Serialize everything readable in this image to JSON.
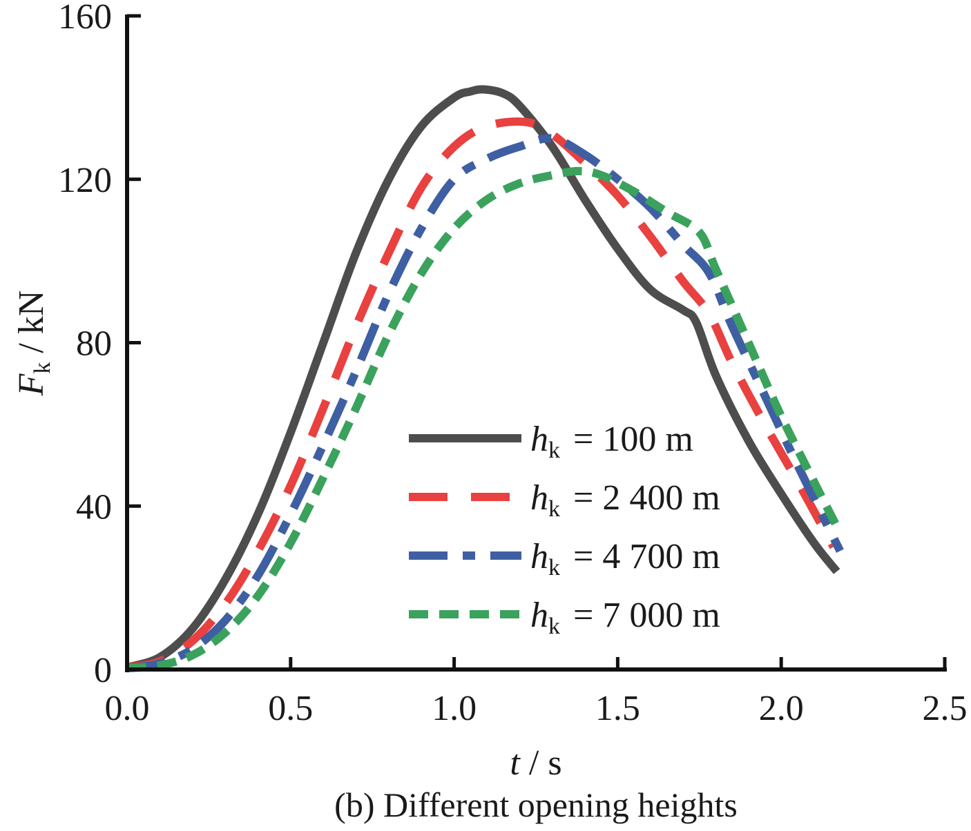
{
  "chart_data": {
    "type": "line",
    "title": "",
    "caption": "(b) Different opening heights",
    "xlabel": {
      "var": "t",
      "unit": " / s"
    },
    "ylabel": {
      "var": "F",
      "sub": "k",
      "unit": " / kN"
    },
    "xlim": [
      0,
      2.5
    ],
    "ylim": [
      0,
      160
    ],
    "xticks": [
      0.0,
      0.5,
      1.0,
      1.5,
      2.0,
      2.5
    ],
    "xtick_labels": [
      "0.0",
      "0.5",
      "1.0",
      "1.5",
      "2.0",
      "2.5"
    ],
    "yticks": [
      0,
      40,
      80,
      120,
      160
    ],
    "ytick_labels": [
      "0",
      "40",
      "80",
      "120",
      "160"
    ],
    "grid": false,
    "legend_position": "center-right",
    "series": [
      {
        "name": "h_k = 100 m",
        "label_var": "h",
        "label_sub": "k",
        "label_value": "= 100  m",
        "color": "#4d4d4d",
        "style": "solid",
        "x": [
          0.0,
          0.1,
          0.2,
          0.3,
          0.4,
          0.5,
          0.6,
          0.7,
          0.8,
          0.9,
          1.0,
          1.05,
          1.09,
          1.15,
          1.2,
          1.3,
          1.4,
          1.5,
          1.6,
          1.7,
          1.74,
          1.8,
          1.9,
          2.0,
          2.1,
          2.17
        ],
        "y": [
          0.5,
          3,
          10,
          22,
          38,
          58,
          80,
          102,
          120,
          133,
          140,
          141.5,
          142,
          141,
          138,
          128,
          115,
          103,
          93,
          88,
          85,
          72,
          56,
          43,
          31,
          24
        ]
      },
      {
        "name": "h_k = 2 400 m",
        "label_var": "h",
        "label_sub": "k",
        "label_value": "= 2 400  m",
        "color": "#e8413f",
        "style": "dash",
        "x": [
          0.0,
          0.1,
          0.2,
          0.3,
          0.4,
          0.5,
          0.6,
          0.7,
          0.8,
          0.9,
          1.0,
          1.1,
          1.22,
          1.3,
          1.4,
          1.5,
          1.6,
          1.7,
          1.78,
          1.85,
          1.95,
          2.05,
          2.16
        ],
        "y": [
          0.5,
          2,
          7,
          16,
          29,
          45,
          64,
          84,
          102,
          118,
          128,
          133,
          134,
          131,
          124,
          116,
          106,
          95,
          87,
          75,
          60,
          46,
          30
        ]
      },
      {
        "name": "h_k = 4 700 m",
        "label_var": "h",
        "label_sub": "k",
        "label_value": "= 4 700  m",
        "color": "#3f5fa3",
        "style": "dashdot",
        "x": [
          0.0,
          0.1,
          0.2,
          0.3,
          0.4,
          0.5,
          0.6,
          0.7,
          0.8,
          0.9,
          1.0,
          1.1,
          1.2,
          1.3,
          1.4,
          1.5,
          1.6,
          1.7,
          1.78,
          1.85,
          1.95,
          2.05,
          2.18
        ],
        "y": [
          0.3,
          1.5,
          5,
          12,
          23,
          38,
          55,
          73,
          92,
          108,
          120,
          125,
          128,
          130,
          126,
          120,
          113,
          104,
          97,
          84,
          67,
          50,
          29
        ]
      },
      {
        "name": "h_k = 7 000 m",
        "label_var": "h",
        "label_sub": "k",
        "label_value": "= 7 000  m",
        "color": "#3aa25c",
        "style": "dot",
        "x": [
          0.0,
          0.1,
          0.2,
          0.3,
          0.4,
          0.5,
          0.6,
          0.7,
          0.8,
          0.9,
          1.0,
          1.1,
          1.2,
          1.3,
          1.38,
          1.45,
          1.55,
          1.65,
          1.75,
          1.8,
          1.9,
          2.0,
          2.1,
          2.17
        ],
        "y": [
          0.3,
          1,
          3.5,
          9,
          18,
          31,
          47,
          64,
          82,
          97,
          108,
          115,
          119,
          121,
          122,
          121,
          117,
          112,
          107,
          98,
          80,
          62,
          46,
          35
        ]
      }
    ]
  }
}
